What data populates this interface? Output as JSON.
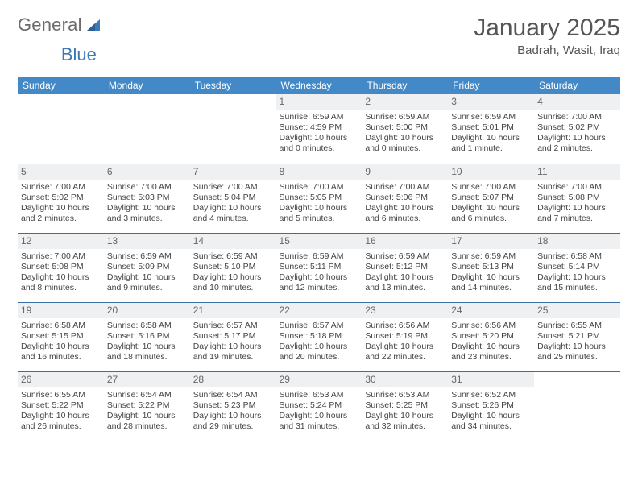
{
  "logo": {
    "part1": "General",
    "part2": "Blue"
  },
  "title": "January 2025",
  "location": "Badrah, Wasit, Iraq",
  "colors": {
    "header_bg": "#4389c8",
    "row_divider": "#3b6fa3",
    "daynum_bg": "#eef0f2",
    "logo_blue": "#3b79b7"
  },
  "day_names": [
    "Sunday",
    "Monday",
    "Tuesday",
    "Wednesday",
    "Thursday",
    "Friday",
    "Saturday"
  ],
  "weeks": [
    [
      null,
      null,
      null,
      {
        "n": "1",
        "sr": "Sunrise: 6:59 AM",
        "ss": "Sunset: 4:59 PM",
        "d1": "Daylight: 10 hours",
        "d2": "and 0 minutes."
      },
      {
        "n": "2",
        "sr": "Sunrise: 6:59 AM",
        "ss": "Sunset: 5:00 PM",
        "d1": "Daylight: 10 hours",
        "d2": "and 0 minutes."
      },
      {
        "n": "3",
        "sr": "Sunrise: 6:59 AM",
        "ss": "Sunset: 5:01 PM",
        "d1": "Daylight: 10 hours",
        "d2": "and 1 minute."
      },
      {
        "n": "4",
        "sr": "Sunrise: 7:00 AM",
        "ss": "Sunset: 5:02 PM",
        "d1": "Daylight: 10 hours",
        "d2": "and 2 minutes."
      }
    ],
    [
      {
        "n": "5",
        "sr": "Sunrise: 7:00 AM",
        "ss": "Sunset: 5:02 PM",
        "d1": "Daylight: 10 hours",
        "d2": "and 2 minutes."
      },
      {
        "n": "6",
        "sr": "Sunrise: 7:00 AM",
        "ss": "Sunset: 5:03 PM",
        "d1": "Daylight: 10 hours",
        "d2": "and 3 minutes."
      },
      {
        "n": "7",
        "sr": "Sunrise: 7:00 AM",
        "ss": "Sunset: 5:04 PM",
        "d1": "Daylight: 10 hours",
        "d2": "and 4 minutes."
      },
      {
        "n": "8",
        "sr": "Sunrise: 7:00 AM",
        "ss": "Sunset: 5:05 PM",
        "d1": "Daylight: 10 hours",
        "d2": "and 5 minutes."
      },
      {
        "n": "9",
        "sr": "Sunrise: 7:00 AM",
        "ss": "Sunset: 5:06 PM",
        "d1": "Daylight: 10 hours",
        "d2": "and 6 minutes."
      },
      {
        "n": "10",
        "sr": "Sunrise: 7:00 AM",
        "ss": "Sunset: 5:07 PM",
        "d1": "Daylight: 10 hours",
        "d2": "and 6 minutes."
      },
      {
        "n": "11",
        "sr": "Sunrise: 7:00 AM",
        "ss": "Sunset: 5:08 PM",
        "d1": "Daylight: 10 hours",
        "d2": "and 7 minutes."
      }
    ],
    [
      {
        "n": "12",
        "sr": "Sunrise: 7:00 AM",
        "ss": "Sunset: 5:08 PM",
        "d1": "Daylight: 10 hours",
        "d2": "and 8 minutes."
      },
      {
        "n": "13",
        "sr": "Sunrise: 6:59 AM",
        "ss": "Sunset: 5:09 PM",
        "d1": "Daylight: 10 hours",
        "d2": "and 9 minutes."
      },
      {
        "n": "14",
        "sr": "Sunrise: 6:59 AM",
        "ss": "Sunset: 5:10 PM",
        "d1": "Daylight: 10 hours",
        "d2": "and 10 minutes."
      },
      {
        "n": "15",
        "sr": "Sunrise: 6:59 AM",
        "ss": "Sunset: 5:11 PM",
        "d1": "Daylight: 10 hours",
        "d2": "and 12 minutes."
      },
      {
        "n": "16",
        "sr": "Sunrise: 6:59 AM",
        "ss": "Sunset: 5:12 PM",
        "d1": "Daylight: 10 hours",
        "d2": "and 13 minutes."
      },
      {
        "n": "17",
        "sr": "Sunrise: 6:59 AM",
        "ss": "Sunset: 5:13 PM",
        "d1": "Daylight: 10 hours",
        "d2": "and 14 minutes."
      },
      {
        "n": "18",
        "sr": "Sunrise: 6:58 AM",
        "ss": "Sunset: 5:14 PM",
        "d1": "Daylight: 10 hours",
        "d2": "and 15 minutes."
      }
    ],
    [
      {
        "n": "19",
        "sr": "Sunrise: 6:58 AM",
        "ss": "Sunset: 5:15 PM",
        "d1": "Daylight: 10 hours",
        "d2": "and 16 minutes."
      },
      {
        "n": "20",
        "sr": "Sunrise: 6:58 AM",
        "ss": "Sunset: 5:16 PM",
        "d1": "Daylight: 10 hours",
        "d2": "and 18 minutes."
      },
      {
        "n": "21",
        "sr": "Sunrise: 6:57 AM",
        "ss": "Sunset: 5:17 PM",
        "d1": "Daylight: 10 hours",
        "d2": "and 19 minutes."
      },
      {
        "n": "22",
        "sr": "Sunrise: 6:57 AM",
        "ss": "Sunset: 5:18 PM",
        "d1": "Daylight: 10 hours",
        "d2": "and 20 minutes."
      },
      {
        "n": "23",
        "sr": "Sunrise: 6:56 AM",
        "ss": "Sunset: 5:19 PM",
        "d1": "Daylight: 10 hours",
        "d2": "and 22 minutes."
      },
      {
        "n": "24",
        "sr": "Sunrise: 6:56 AM",
        "ss": "Sunset: 5:20 PM",
        "d1": "Daylight: 10 hours",
        "d2": "and 23 minutes."
      },
      {
        "n": "25",
        "sr": "Sunrise: 6:55 AM",
        "ss": "Sunset: 5:21 PM",
        "d1": "Daylight: 10 hours",
        "d2": "and 25 minutes."
      }
    ],
    [
      {
        "n": "26",
        "sr": "Sunrise: 6:55 AM",
        "ss": "Sunset: 5:22 PM",
        "d1": "Daylight: 10 hours",
        "d2": "and 26 minutes."
      },
      {
        "n": "27",
        "sr": "Sunrise: 6:54 AM",
        "ss": "Sunset: 5:22 PM",
        "d1": "Daylight: 10 hours",
        "d2": "and 28 minutes."
      },
      {
        "n": "28",
        "sr": "Sunrise: 6:54 AM",
        "ss": "Sunset: 5:23 PM",
        "d1": "Daylight: 10 hours",
        "d2": "and 29 minutes."
      },
      {
        "n": "29",
        "sr": "Sunrise: 6:53 AM",
        "ss": "Sunset: 5:24 PM",
        "d1": "Daylight: 10 hours",
        "d2": "and 31 minutes."
      },
      {
        "n": "30",
        "sr": "Sunrise: 6:53 AM",
        "ss": "Sunset: 5:25 PM",
        "d1": "Daylight: 10 hours",
        "d2": "and 32 minutes."
      },
      {
        "n": "31",
        "sr": "Sunrise: 6:52 AM",
        "ss": "Sunset: 5:26 PM",
        "d1": "Daylight: 10 hours",
        "d2": "and 34 minutes."
      },
      null
    ]
  ]
}
